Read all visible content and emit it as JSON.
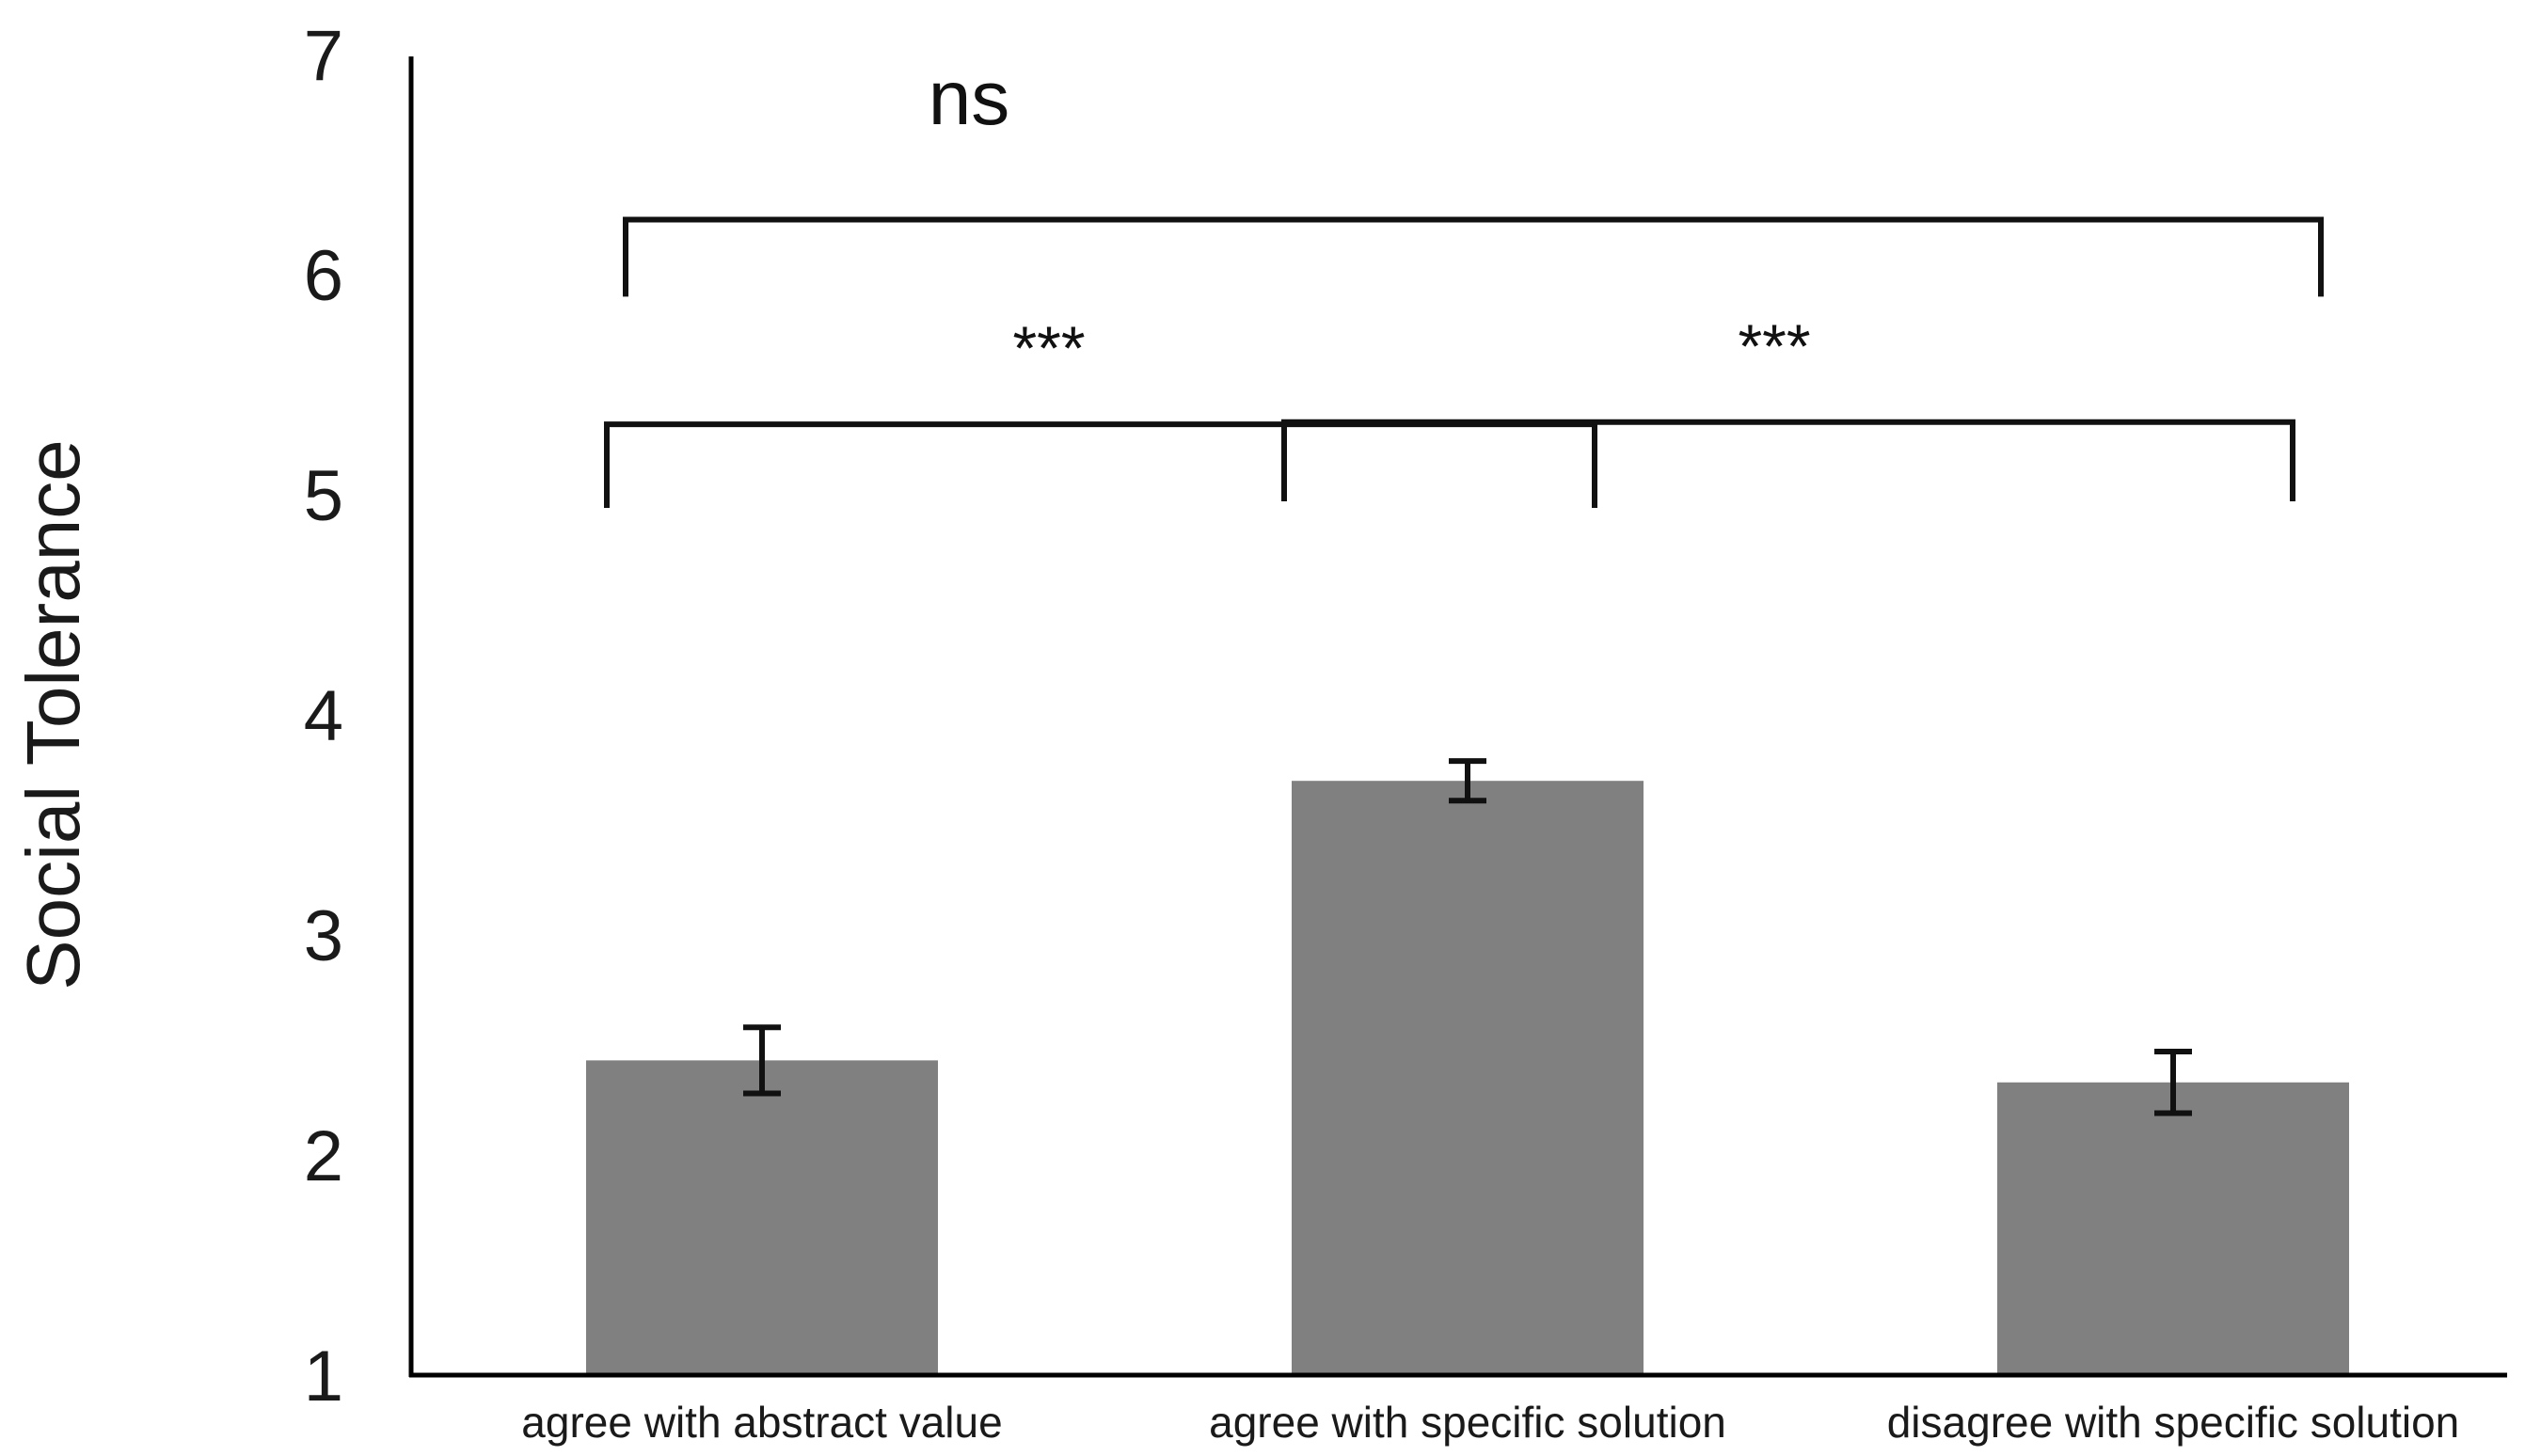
{
  "chart_data": {
    "type": "bar",
    "ylabel": "Social Tolerance",
    "xlabel": "",
    "ylim": [
      1,
      7
    ],
    "yticks": [
      "1",
      "2",
      "3",
      "4",
      "5",
      "6",
      "7"
    ],
    "categories": [
      "agree with abstract value",
      "agree with specific solution",
      "disagree with specific solution"
    ],
    "values": [
      2.43,
      3.7,
      2.33
    ],
    "errors": [
      0.15,
      0.09,
      0.14
    ],
    "bar_color": "#808080",
    "grid": false,
    "significance": [
      {
        "from": 0,
        "to": 2,
        "label": "ns",
        "y": 6.25,
        "drop": 0.35
      },
      {
        "from": 0,
        "to": 1,
        "label": "***",
        "y": 5.32,
        "drop": 0.38
      },
      {
        "from": 1,
        "to": 2,
        "label": "***",
        "y": 5.33,
        "drop": 0.36
      }
    ]
  }
}
